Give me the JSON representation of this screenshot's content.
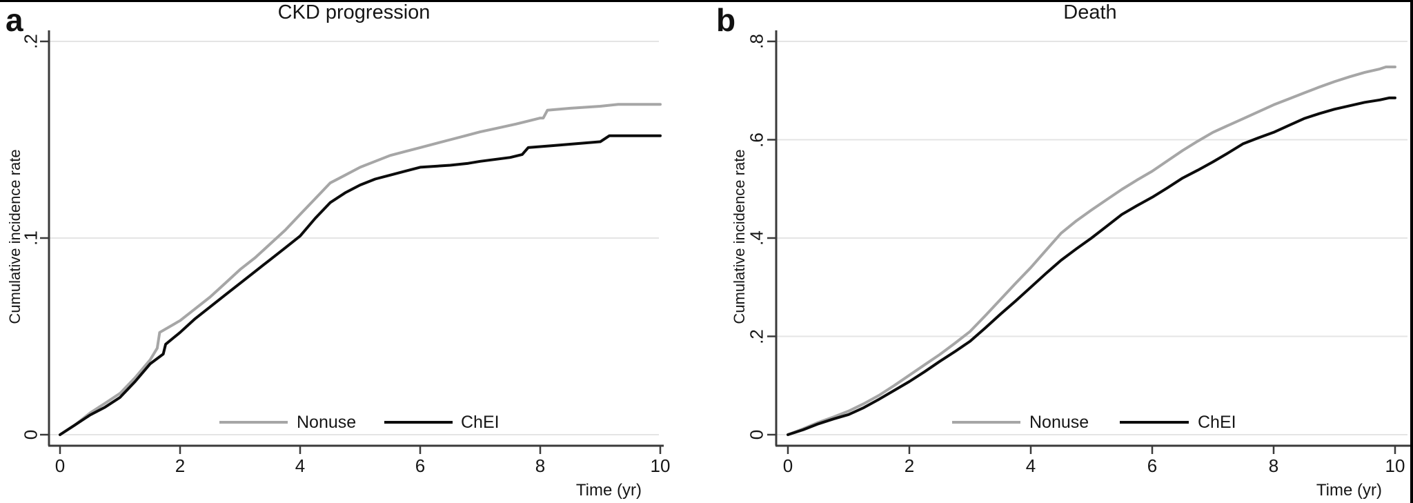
{
  "figure": {
    "panels": [
      {
        "letter": "a",
        "title": "CKD progression",
        "x_axis_label": "Time (yr)",
        "y_axis_label": "Cumulative incidence rate",
        "legend": [
          {
            "label": "Nonuse"
          },
          {
            "label": "ChEI"
          }
        ]
      },
      {
        "letter": "b",
        "title": "Death",
        "x_axis_label": "Time (yr)",
        "y_axis_label": "Cumulative incidence rate",
        "legend": [
          {
            "label": "Nonuse"
          },
          {
            "label": "ChEI"
          }
        ]
      }
    ],
    "colors": {
      "nonuse_line": "#a6a6a6",
      "chei_line": "#0c0c0c",
      "gridline": "#e4e4e4",
      "axis": "#3a3a3a",
      "text": "#1a1a1a",
      "background": "#ffffff",
      "frame_border": "#000000"
    }
  },
  "chart_data": [
    {
      "type": "line",
      "title": "CKD progression",
      "xlabel": "Time (yr)",
      "ylabel": "Cumulative incidence rate",
      "xlim": [
        0,
        10
      ],
      "ylim": [
        0,
        0.2
      ],
      "grid": true,
      "legend_position": "inside-bottom",
      "x_ticks": [
        {
          "value": 0,
          "label": "0"
        },
        {
          "value": 2,
          "label": "2"
        },
        {
          "value": 4,
          "label": "4"
        },
        {
          "value": 6,
          "label": "6"
        },
        {
          "value": 8,
          "label": "8"
        },
        {
          "value": 10,
          "label": "10"
        }
      ],
      "y_ticks": [
        {
          "value": 0,
          "label": "0"
        },
        {
          "value": 0.1,
          "label": ".1"
        },
        {
          "value": 0.2,
          "label": ".2"
        }
      ],
      "series": [
        {
          "name": "Nonuse",
          "color": "#a6a6a6",
          "points": [
            [
              0,
              0
            ],
            [
              0.25,
              0.005
            ],
            [
              0.5,
              0.011
            ],
            [
              0.75,
              0.016
            ],
            [
              1,
              0.021
            ],
            [
              1.25,
              0.029
            ],
            [
              1.5,
              0.038
            ],
            [
              1.62,
              0.044
            ],
            [
              1.66,
              0.052
            ],
            [
              2,
              0.058
            ],
            [
              2.25,
              0.064
            ],
            [
              2.5,
              0.07
            ],
            [
              2.75,
              0.077
            ],
            [
              3,
              0.084
            ],
            [
              3.25,
              0.09
            ],
            [
              3.5,
              0.097
            ],
            [
              3.75,
              0.104
            ],
            [
              4,
              0.112
            ],
            [
              4.25,
              0.12
            ],
            [
              4.5,
              0.128
            ],
            [
              4.75,
              0.132
            ],
            [
              5,
              0.136
            ],
            [
              5.25,
              0.139
            ],
            [
              5.5,
              0.142
            ],
            [
              5.75,
              0.144
            ],
            [
              6,
              0.146
            ],
            [
              6.25,
              0.148
            ],
            [
              6.5,
              0.15
            ],
            [
              6.75,
              0.152
            ],
            [
              7,
              0.154
            ],
            [
              7.3,
              0.156
            ],
            [
              7.6,
              0.158
            ],
            [
              8,
              0.161
            ],
            [
              8.05,
              0.161
            ],
            [
              8.12,
              0.165
            ],
            [
              8.5,
              0.166
            ],
            [
              9,
              0.167
            ],
            [
              9.3,
              0.168
            ],
            [
              10,
              0.168
            ]
          ]
        },
        {
          "name": "ChEI",
          "color": "#0c0c0c",
          "points": [
            [
              0,
              0
            ],
            [
              0.25,
              0.005
            ],
            [
              0.5,
              0.01
            ],
            [
              0.75,
              0.014
            ],
            [
              1,
              0.019
            ],
            [
              1.25,
              0.027
            ],
            [
              1.5,
              0.036
            ],
            [
              1.72,
              0.041
            ],
            [
              1.76,
              0.046
            ],
            [
              2,
              0.052
            ],
            [
              2.25,
              0.059
            ],
            [
              2.5,
              0.065
            ],
            [
              2.75,
              0.071
            ],
            [
              3,
              0.077
            ],
            [
              3.25,
              0.083
            ],
            [
              3.5,
              0.089
            ],
            [
              3.75,
              0.095
            ],
            [
              4,
              0.101
            ],
            [
              4.25,
              0.11
            ],
            [
              4.5,
              0.118
            ],
            [
              4.75,
              0.123
            ],
            [
              5,
              0.127
            ],
            [
              5.25,
              0.13
            ],
            [
              5.5,
              0.132
            ],
            [
              5.75,
              0.134
            ],
            [
              6,
              0.136
            ],
            [
              6.5,
              0.137
            ],
            [
              6.8,
              0.138
            ],
            [
              7,
              0.139
            ],
            [
              7.5,
              0.141
            ],
            [
              7.7,
              0.1425
            ],
            [
              7.8,
              0.146
            ],
            [
              8.2,
              0.147
            ],
            [
              8.6,
              0.148
            ],
            [
              9,
              0.149
            ],
            [
              9.15,
              0.152
            ],
            [
              9.5,
              0.152
            ],
            [
              10,
              0.152
            ]
          ]
        }
      ]
    },
    {
      "type": "line",
      "title": "Death",
      "xlabel": "Time (yr)",
      "ylabel": "Cumulative incidence rate",
      "xlim": [
        0,
        10
      ],
      "ylim": [
        0,
        0.8
      ],
      "grid": true,
      "legend_position": "inside-bottom",
      "x_ticks": [
        {
          "value": 0,
          "label": "0"
        },
        {
          "value": 2,
          "label": "2"
        },
        {
          "value": 4,
          "label": "4"
        },
        {
          "value": 6,
          "label": "6"
        },
        {
          "value": 8,
          "label": "8"
        },
        {
          "value": 10,
          "label": "10"
        }
      ],
      "y_ticks": [
        {
          "value": 0,
          "label": "0"
        },
        {
          "value": 0.2,
          "label": ".2"
        },
        {
          "value": 0.4,
          "label": ".4"
        },
        {
          "value": 0.6,
          "label": ".6"
        },
        {
          "value": 0.8,
          "label": ".8"
        }
      ],
      "series": [
        {
          "name": "Nonuse",
          "color": "#a6a6a6",
          "points": [
            [
              0,
              0
            ],
            [
              0.25,
              0.012
            ],
            [
              0.5,
              0.025
            ],
            [
              0.75,
              0.036
            ],
            [
              1,
              0.048
            ],
            [
              1.25,
              0.063
            ],
            [
              1.5,
              0.08
            ],
            [
              1.75,
              0.1
            ],
            [
              2,
              0.121
            ],
            [
              2.25,
              0.142
            ],
            [
              2.5,
              0.163
            ],
            [
              2.75,
              0.186
            ],
            [
              3,
              0.21
            ],
            [
              3.25,
              0.242
            ],
            [
              3.5,
              0.275
            ],
            [
              3.75,
              0.308
            ],
            [
              4,
              0.34
            ],
            [
              4.25,
              0.375
            ],
            [
              4.5,
              0.41
            ],
            [
              4.75,
              0.435
            ],
            [
              5,
              0.457
            ],
            [
              5.25,
              0.478
            ],
            [
              5.5,
              0.499
            ],
            [
              5.75,
              0.518
            ],
            [
              6,
              0.536
            ],
            [
              6.25,
              0.557
            ],
            [
              6.5,
              0.578
            ],
            [
              6.75,
              0.597
            ],
            [
              7,
              0.615
            ],
            [
              7.25,
              0.629
            ],
            [
              7.5,
              0.643
            ],
            [
              7.75,
              0.657
            ],
            [
              8,
              0.671
            ],
            [
              8.25,
              0.683
            ],
            [
              8.5,
              0.695
            ],
            [
              8.75,
              0.707
            ],
            [
              9,
              0.718
            ],
            [
              9.25,
              0.728
            ],
            [
              9.5,
              0.737
            ],
            [
              9.75,
              0.744
            ],
            [
              9.85,
              0.748
            ],
            [
              10,
              0.748
            ]
          ]
        },
        {
          "name": "ChEI",
          "color": "#0c0c0c",
          "points": [
            [
              0,
              0
            ],
            [
              0.25,
              0.01
            ],
            [
              0.5,
              0.022
            ],
            [
              0.75,
              0.032
            ],
            [
              1,
              0.041
            ],
            [
              1.25,
              0.055
            ],
            [
              1.5,
              0.072
            ],
            [
              1.75,
              0.09
            ],
            [
              2,
              0.108
            ],
            [
              2.25,
              0.128
            ],
            [
              2.5,
              0.149
            ],
            [
              2.75,
              0.169
            ],
            [
              3,
              0.19
            ],
            [
              3.25,
              0.217
            ],
            [
              3.5,
              0.245
            ],
            [
              3.75,
              0.272
            ],
            [
              4,
              0.3
            ],
            [
              4.25,
              0.328
            ],
            [
              4.5,
              0.355
            ],
            [
              4.75,
              0.378
            ],
            [
              5,
              0.4
            ],
            [
              5.25,
              0.424
            ],
            [
              5.5,
              0.448
            ],
            [
              5.75,
              0.466
            ],
            [
              6,
              0.483
            ],
            [
              6.25,
              0.502
            ],
            [
              6.5,
              0.522
            ],
            [
              6.75,
              0.538
            ],
            [
              7,
              0.555
            ],
            [
              7.25,
              0.573
            ],
            [
              7.5,
              0.592
            ],
            [
              7.75,
              0.604
            ],
            [
              8,
              0.615
            ],
            [
              8.25,
              0.629
            ],
            [
              8.5,
              0.643
            ],
            [
              8.75,
              0.653
            ],
            [
              9,
              0.662
            ],
            [
              9.25,
              0.669
            ],
            [
              9.5,
              0.676
            ],
            [
              9.75,
              0.681
            ],
            [
              9.9,
              0.685
            ],
            [
              10,
              0.685
            ]
          ]
        }
      ]
    }
  ]
}
